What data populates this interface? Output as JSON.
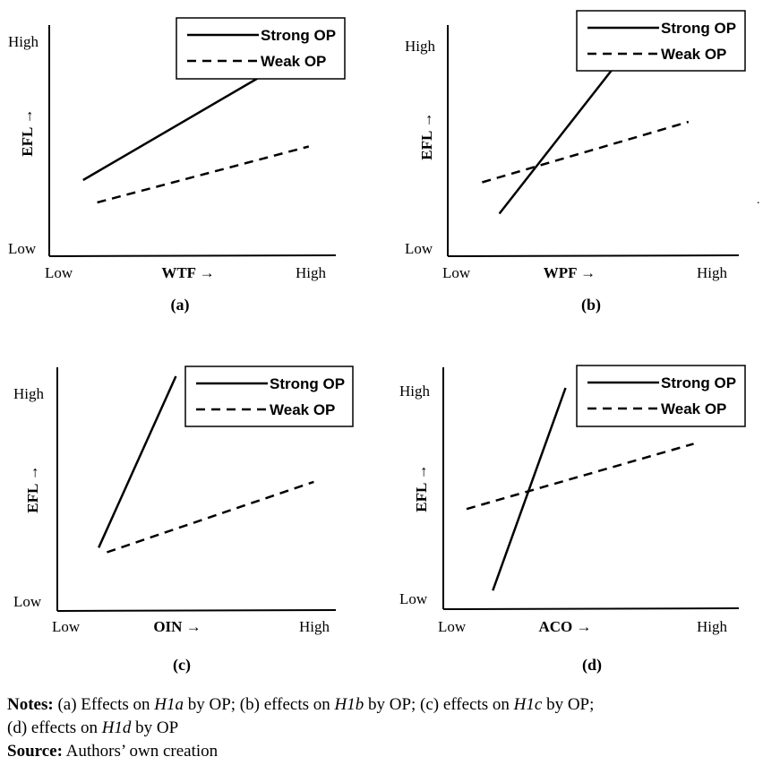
{
  "chart_data": [
    {
      "type": "line",
      "caption": "(a)",
      "xlabel": "WTF →",
      "ylabel": "EFL →",
      "x_ticks": [
        "Low",
        "High"
      ],
      "y_ticks": [
        "Low",
        "High"
      ],
      "legend_position": "top-right",
      "xlim": [
        0,
        1
      ],
      "ylim": [
        0,
        1
      ],
      "series": [
        {
          "name": "Strong OP",
          "style": "solid",
          "x": [
            0.12,
            0.76
          ],
          "y": [
            0.34,
            0.81
          ]
        },
        {
          "name": "Weak OP",
          "style": "dashed",
          "x": [
            0.17,
            0.92
          ],
          "y": [
            0.24,
            0.49
          ]
        }
      ]
    },
    {
      "type": "line",
      "caption": "(b)",
      "xlabel": "WPF →",
      "ylabel": "EFL →",
      "x_ticks": [
        "Low",
        "High"
      ],
      "y_ticks": [
        "Low",
        "High"
      ],
      "legend_position": "top-right",
      "xlim": [
        0,
        1
      ],
      "ylim": [
        0,
        1
      ],
      "series": [
        {
          "name": "Strong OP",
          "style": "solid",
          "x": [
            0.18,
            0.59
          ],
          "y": [
            0.19,
            0.86
          ]
        },
        {
          "name": "Weak OP",
          "style": "dashed",
          "x": [
            0.12,
            0.84
          ],
          "y": [
            0.33,
            0.6
          ]
        }
      ]
    },
    {
      "type": "line",
      "caption": "(c)",
      "xlabel": "OIN →",
      "ylabel": "EFL →",
      "x_ticks": [
        "Low",
        "High"
      ],
      "y_ticks": [
        "Low",
        "High"
      ],
      "legend_position": "top-right",
      "xlim": [
        0,
        1
      ],
      "ylim": [
        0,
        1
      ],
      "series": [
        {
          "name": "Strong OP",
          "style": "solid",
          "x": [
            0.15,
            0.43
          ],
          "y": [
            0.27,
            1.0
          ]
        },
        {
          "name": "Weak OP",
          "style": "dashed",
          "x": [
            0.18,
            0.93
          ],
          "y": [
            0.25,
            0.55
          ]
        }
      ]
    },
    {
      "type": "line",
      "caption": "(d)",
      "xlabel": "ACO →",
      "ylabel": "EFL →",
      "x_ticks": [
        "Low",
        "High"
      ],
      "y_ticks": [
        "Low",
        "High"
      ],
      "legend_position": "top-right",
      "xlim": [
        0,
        1
      ],
      "ylim": [
        0,
        1
      ],
      "series": [
        {
          "name": "Strong OP",
          "style": "solid",
          "x": [
            0.17,
            0.42
          ],
          "y": [
            0.08,
            0.95
          ]
        },
        {
          "name": "Weak OP",
          "style": "dashed",
          "x": [
            0.08,
            0.86
          ],
          "y": [
            0.43,
            0.71
          ]
        }
      ]
    }
  ],
  "notes": {
    "notes_label": "Notes:",
    "note_a": " (a) Effects on ",
    "h1a": "H1a",
    "note_b": " by OP; (b) effects on ",
    "h1b": "H1b",
    "note_c": " by OP; (c) effects on ",
    "h1c": "H1c",
    "note_c_end": " by OP;",
    "note_d": "(d) effects on ",
    "h1d": "H1d",
    "note_d_end": " by OP",
    "source_label": "Source:",
    "source_text": " Authors’ own creation"
  },
  "colors": {
    "ink": "#000000",
    "background": "#ffffff"
  }
}
